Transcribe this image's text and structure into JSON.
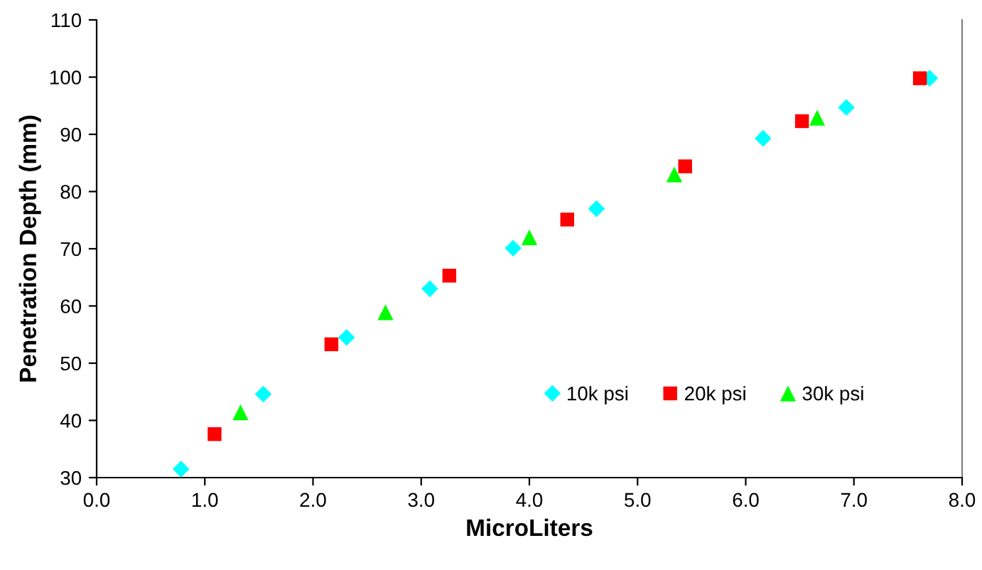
{
  "chart_data": {
    "type": "scatter",
    "xlabel": "MicroLiters",
    "ylabel": "Penetration Depth (mm)",
    "xlim": [
      0,
      8
    ],
    "ylim": [
      30,
      110
    ],
    "xticks": [
      {
        "value": 0,
        "label": "0.0"
      },
      {
        "value": 1,
        "label": "1.0"
      },
      {
        "value": 2,
        "label": "2.0"
      },
      {
        "value": 3,
        "label": "3.0"
      },
      {
        "value": 4,
        "label": "4.0"
      },
      {
        "value": 5,
        "label": "5.0"
      },
      {
        "value": 6,
        "label": "6.0"
      },
      {
        "value": 7,
        "label": "7.0"
      },
      {
        "value": 8,
        "label": "8.0"
      }
    ],
    "yticks": [
      30,
      40,
      50,
      60,
      70,
      80,
      90,
      100,
      110
    ],
    "grid": false,
    "legend": "bottom right",
    "series": [
      {
        "name": "10k psi",
        "color": "#00ffff",
        "marker": "diamond",
        "x": [
          0.78,
          1.54,
          2.31,
          3.08,
          3.85,
          4.62,
          5.39,
          6.16,
          6.93,
          7.7
        ],
        "values": [
          31.5,
          44.6,
          54.5,
          63.0,
          70.1,
          77.0,
          null,
          89.3,
          94.7,
          99.8
        ]
      },
      {
        "name": "20k psi",
        "color": "#ff0000",
        "marker": "square",
        "x": [
          1.09,
          2.17,
          3.26,
          4.35,
          5.44,
          6.52,
          7.61
        ],
        "values": [
          37.6,
          53.3,
          65.3,
          75.1,
          84.4,
          92.3,
          99.8
        ]
      },
      {
        "name": "30k psi",
        "color": "#00ff00",
        "marker": "triangle",
        "x": [
          1.33,
          2.67,
          4.0,
          5.34,
          6.66
        ],
        "values": [
          41.4,
          58.9,
          72.0,
          83.0,
          92.9
        ]
      }
    ]
  }
}
